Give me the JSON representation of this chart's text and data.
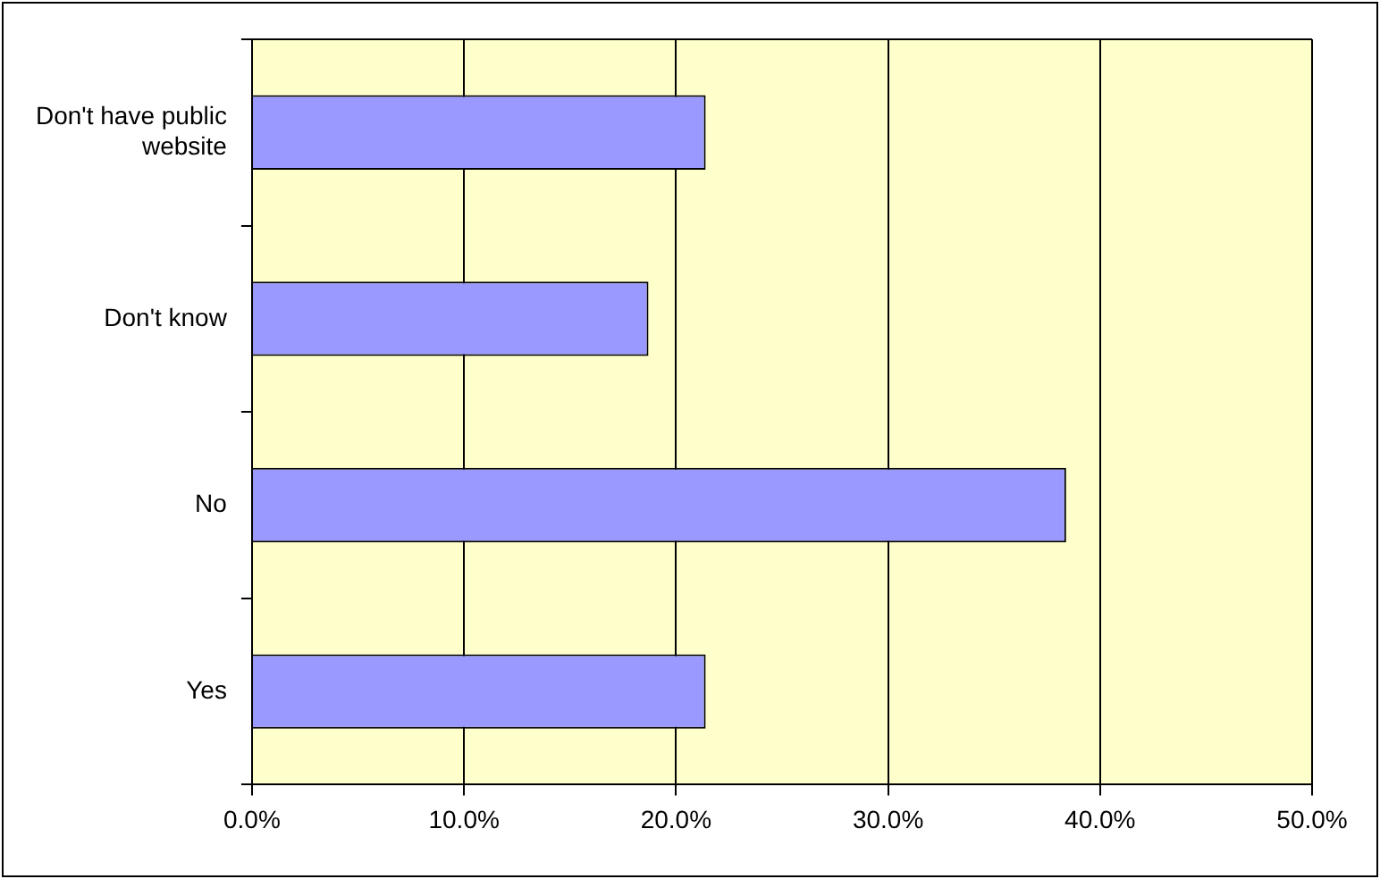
{
  "chart_data": {
    "type": "bar",
    "orientation": "horizontal",
    "categories": [
      "Don't have public website",
      "Don't know",
      "No",
      "Yes"
    ],
    "values": [
      21.4,
      18.7,
      38.4,
      21.4
    ],
    "color": "#9999ff",
    "xlim": [
      0,
      50
    ],
    "xticks": [
      {
        "value": 0,
        "label": "0.0%"
      },
      {
        "value": 10,
        "label": "10.0%"
      },
      {
        "value": 20,
        "label": "20.0%"
      },
      {
        "value": 30,
        "label": "30.0%"
      },
      {
        "value": 40,
        "label": "40.0%"
      },
      {
        "value": 50,
        "label": "50.0%"
      }
    ],
    "grid": "x"
  }
}
